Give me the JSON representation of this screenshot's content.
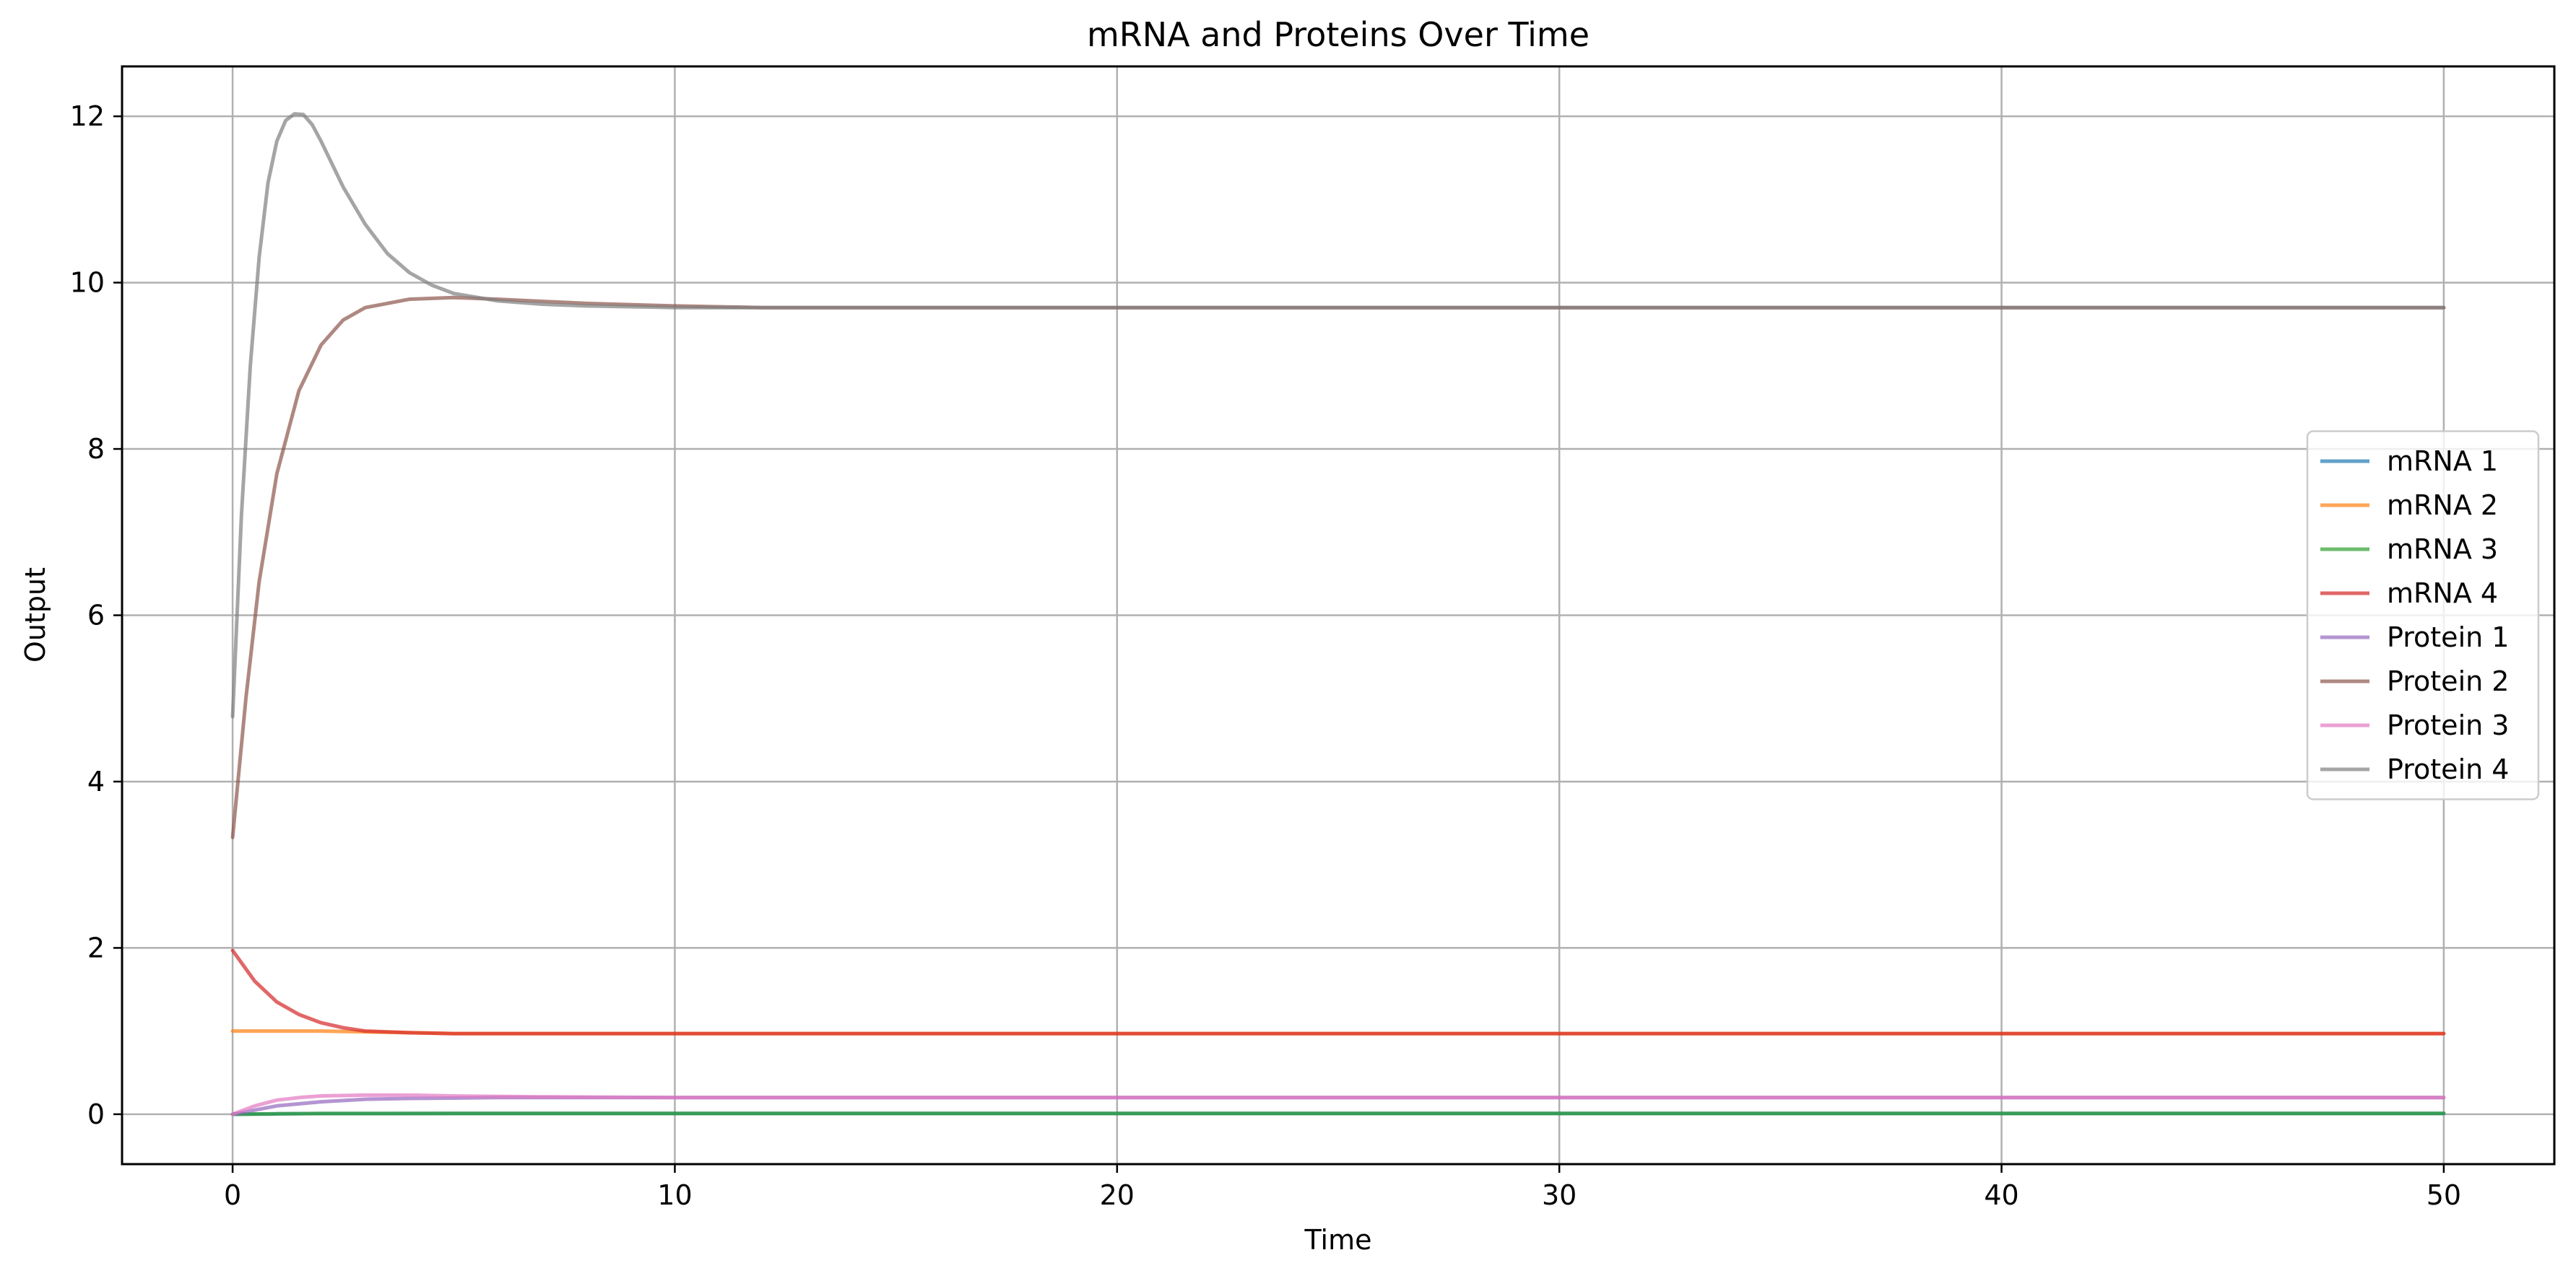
{
  "chart_data": {
    "type": "line",
    "title": "mRNA and Proteins Over Time",
    "xlabel": "Time",
    "ylabel": "Output",
    "xlim": [
      -2.5,
      52.5
    ],
    "ylim": [
      -0.6,
      12.6
    ],
    "xticks": [
      0,
      10,
      20,
      30,
      40,
      50
    ],
    "yticks": [
      0,
      2,
      4,
      6,
      8,
      10,
      12
    ],
    "grid": true,
    "legend_position": "center-right",
    "series": [
      {
        "name": "mRNA 1",
        "color": "#1f77b4",
        "x": [
          0,
          1,
          2,
          5,
          10,
          20,
          30,
          40,
          50
        ],
        "y": [
          0,
          0.005,
          0.008,
          0.01,
          0.01,
          0.01,
          0.01,
          0.01,
          0.01
        ]
      },
      {
        "name": "mRNA 2",
        "color": "#ff7f0e",
        "x": [
          0,
          1,
          2,
          3,
          4,
          5,
          10,
          20,
          30,
          40,
          50
        ],
        "y": [
          1.0,
          1.0,
          1.0,
          0.99,
          0.98,
          0.97,
          0.97,
          0.97,
          0.97,
          0.97,
          0.97
        ]
      },
      {
        "name": "mRNA 3",
        "color": "#2ca02c",
        "x": [
          0,
          1,
          2,
          5,
          10,
          20,
          30,
          40,
          50
        ],
        "y": [
          0,
          0.005,
          0.008,
          0.01,
          0.01,
          0.01,
          0.01,
          0.01,
          0.01
        ]
      },
      {
        "name": "mRNA 4",
        "color": "#d62728",
        "x": [
          0,
          0.5,
          1,
          1.5,
          2,
          2.5,
          3,
          4,
          5,
          7,
          10,
          20,
          30,
          40,
          50
        ],
        "y": [
          1.97,
          1.6,
          1.35,
          1.2,
          1.1,
          1.04,
          1.0,
          0.98,
          0.97,
          0.97,
          0.97,
          0.97,
          0.97,
          0.97,
          0.97
        ]
      },
      {
        "name": "Protein 1",
        "color": "#9467bd",
        "x": [
          0,
          1,
          2,
          3,
          4,
          6,
          10,
          20,
          30,
          40,
          50
        ],
        "y": [
          0,
          0.1,
          0.15,
          0.18,
          0.19,
          0.2,
          0.2,
          0.2,
          0.2,
          0.2,
          0.2
        ]
      },
      {
        "name": "Protein 2",
        "color": "#8c564b",
        "x": [
          0,
          0.3,
          0.6,
          1,
          1.5,
          2,
          2.5,
          3,
          4,
          5,
          6,
          8,
          10,
          12,
          15,
          20,
          30,
          40,
          50
        ],
        "y": [
          3.33,
          5.0,
          6.4,
          7.7,
          8.7,
          9.25,
          9.55,
          9.7,
          9.8,
          9.82,
          9.8,
          9.75,
          9.72,
          9.7,
          9.7,
          9.7,
          9.7,
          9.7,
          9.7
        ]
      },
      {
        "name": "Protein 3",
        "color": "#e377c2",
        "x": [
          0,
          0.5,
          1,
          1.5,
          2,
          3,
          4,
          5,
          7,
          10,
          20,
          30,
          40,
          50
        ],
        "y": [
          0,
          0.1,
          0.17,
          0.2,
          0.22,
          0.23,
          0.23,
          0.22,
          0.21,
          0.2,
          0.2,
          0.2,
          0.2,
          0.2
        ]
      },
      {
        "name": "Protein 4",
        "color": "#7f7f7f",
        "x": [
          0,
          0.2,
          0.4,
          0.6,
          0.8,
          1,
          1.2,
          1.4,
          1.6,
          1.8,
          2,
          2.5,
          3,
          3.5,
          4,
          4.5,
          5,
          6,
          7,
          8,
          9,
          10,
          12,
          15,
          20,
          30,
          40,
          50
        ],
        "y": [
          4.78,
          7.2,
          9.0,
          10.3,
          11.2,
          11.7,
          11.95,
          12.03,
          12.02,
          11.9,
          11.7,
          11.15,
          10.7,
          10.35,
          10.12,
          9.97,
          9.87,
          9.78,
          9.74,
          9.72,
          9.71,
          9.7,
          9.7,
          9.7,
          9.7,
          9.7,
          9.7,
          9.7
        ]
      }
    ]
  }
}
